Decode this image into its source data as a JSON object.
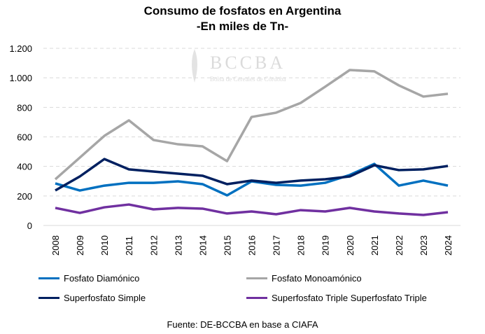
{
  "chart_data": {
    "type": "line",
    "title": "Consumo de fosfatos en Argentina",
    "subtitle": "-En miles de Tn-",
    "xlabel": "",
    "ylabel": "",
    "ylim": [
      0,
      1200
    ],
    "yticks": [
      0,
      200,
      400,
      600,
      800,
      1000,
      1200
    ],
    "ytick_labels": [
      "0",
      "200",
      "400",
      "600",
      "800",
      "1.000",
      "1.200"
    ],
    "grid": true,
    "legend_position": "bottom",
    "categories": [
      "2008",
      "2009",
      "2010",
      "2011",
      "2012",
      "2013",
      "2014",
      "2015",
      "2016",
      "2017",
      "2018",
      "2019",
      "2020",
      "2021",
      "2022",
      "2023",
      "2024"
    ],
    "series": [
      {
        "name": "Fosfato Diamónico",
        "color": "#0070C0",
        "values": [
          285,
          237,
          270,
          289,
          289,
          299,
          280,
          204,
          299,
          275,
          270,
          289,
          342,
          417,
          270,
          304,
          270
        ]
      },
      {
        "name": "Fosfato Monoamónico",
        "color": "#A6A6A6",
        "values": [
          313,
          460,
          607,
          712,
          579,
          550,
          536,
          436,
          735,
          764,
          830,
          940,
          1053,
          1044,
          949,
          873,
          892
        ]
      },
      {
        "name": "Superfosfato Simple",
        "color": "#002060",
        "values": [
          237,
          332,
          450,
          380,
          365,
          351,
          337,
          280,
          304,
          289,
          304,
          313,
          332,
          408,
          375,
          380,
          403
        ]
      },
      {
        "name": "Superfosfato Triple Superfosfato Triple",
        "color": "#7030A0",
        "values": [
          119,
          85,
          123,
          142,
          109,
          119,
          114,
          81,
          95,
          76,
          104,
          95,
          119,
          95,
          81,
          71,
          90
        ]
      }
    ],
    "source": "Fuente: DE-BCCBA en base a CIAFA"
  },
  "watermark": {
    "name": "BCCBA",
    "subtitle": "Bolsa de Cereales de Córdoba"
  }
}
